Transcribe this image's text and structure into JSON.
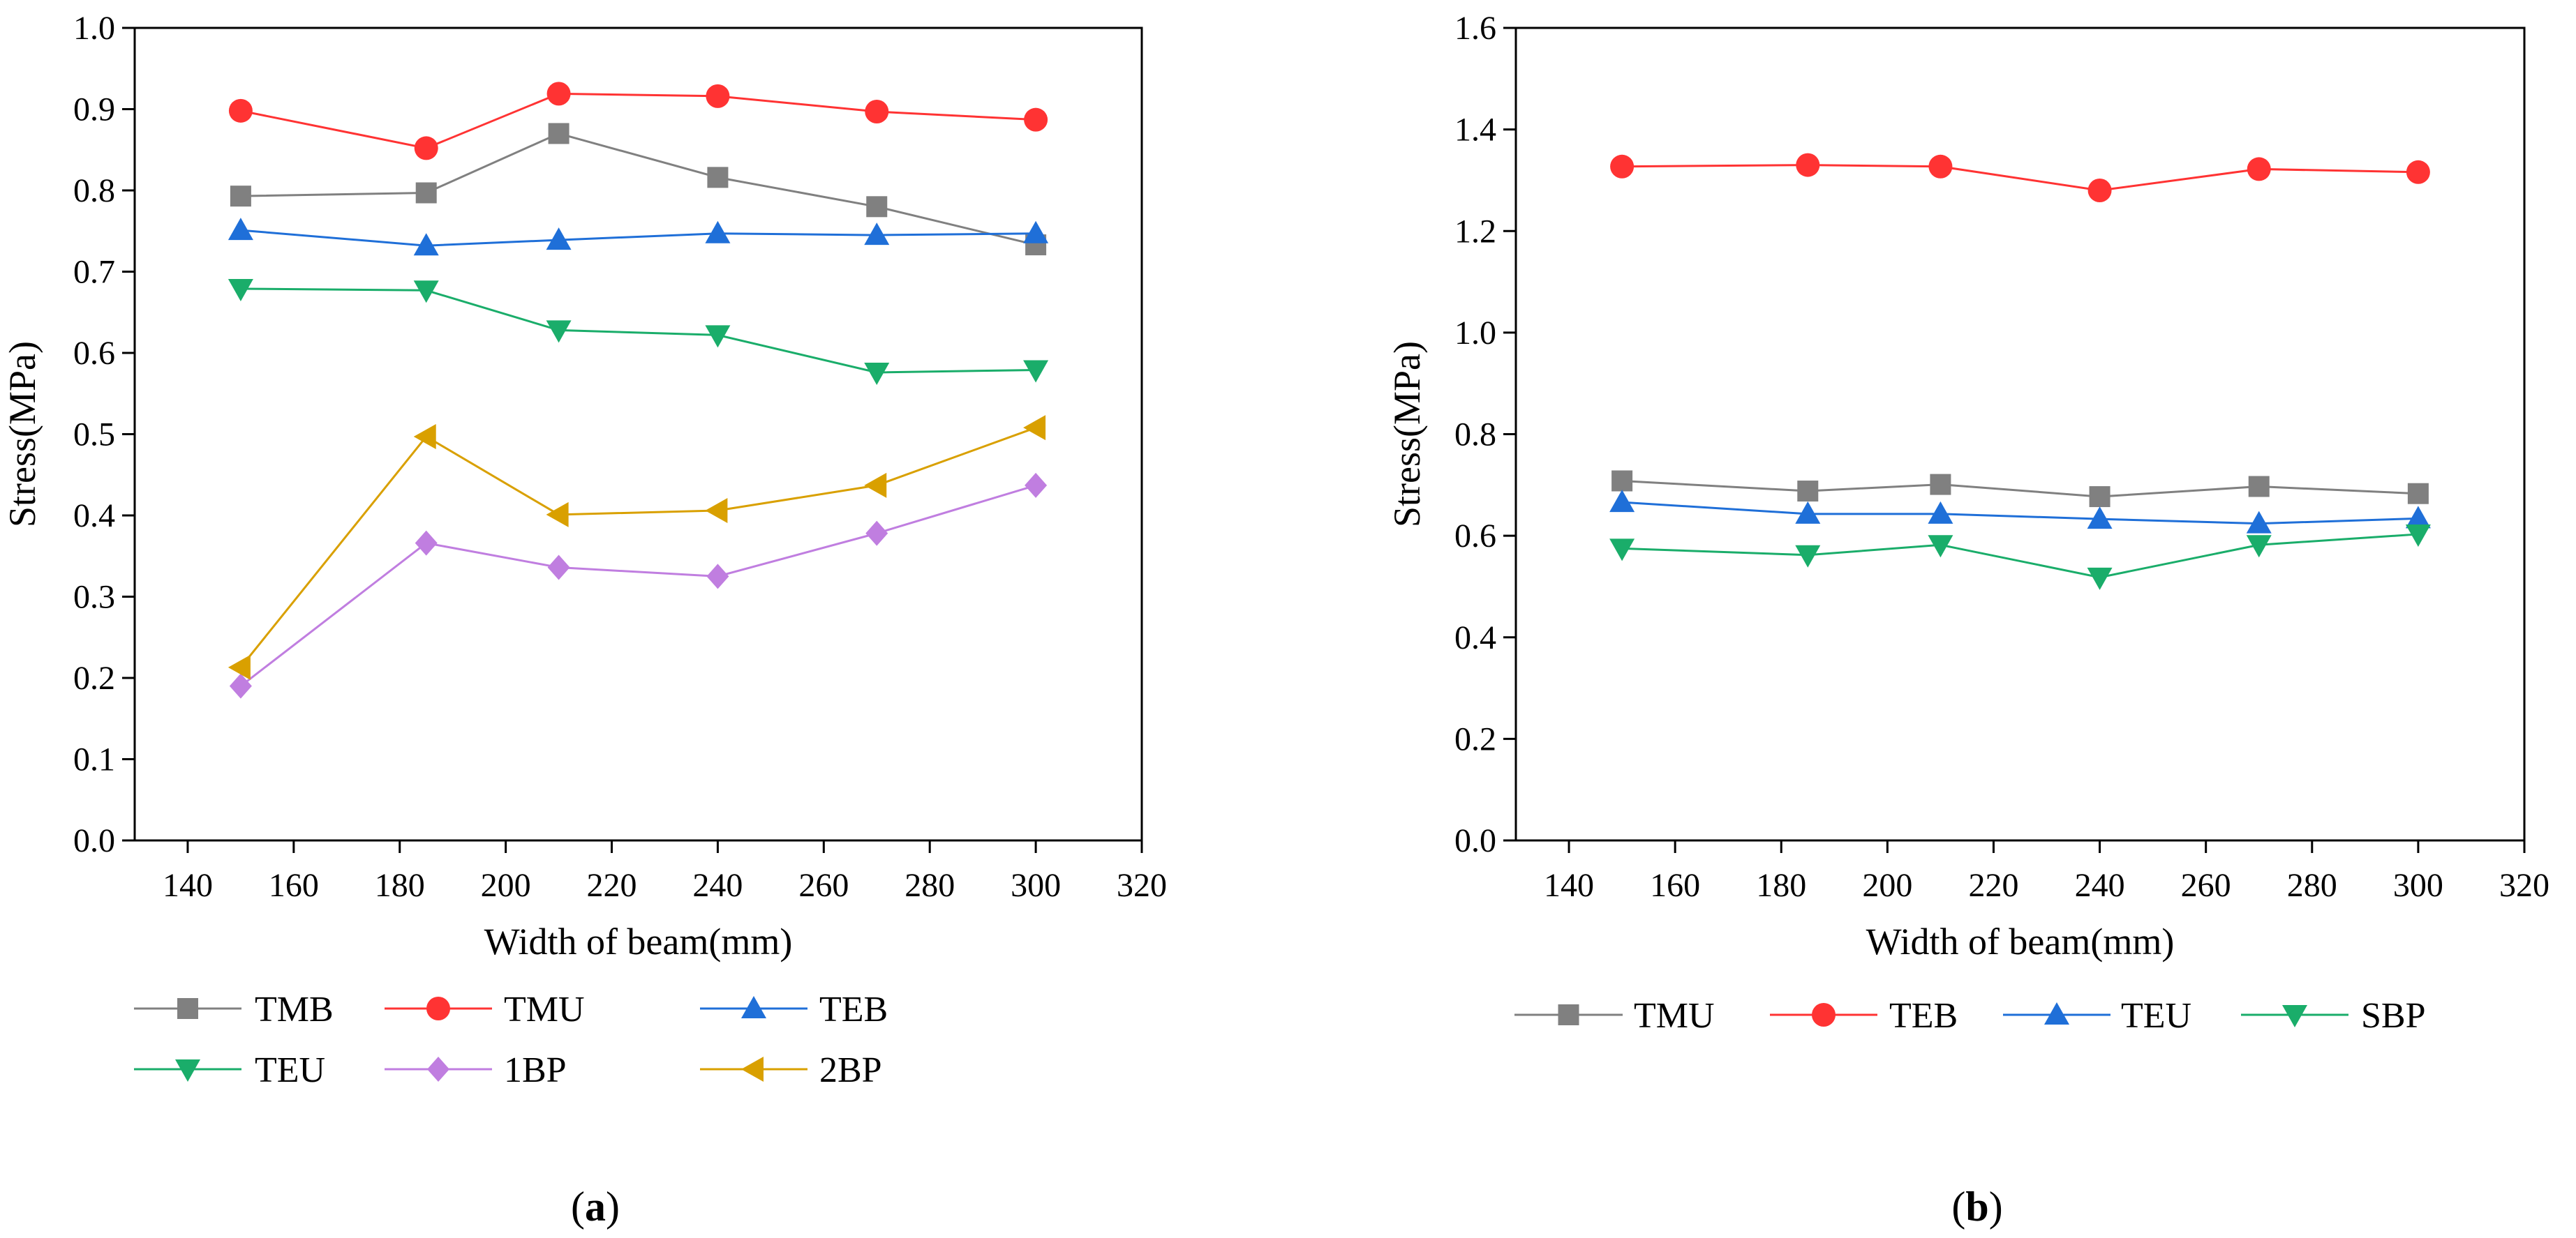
{
  "colors": {
    "TMB": "#808080",
    "TMU": "#ff3333",
    "TEB": "#1f6fd8",
    "TEU": "#1aad6a",
    "1BP": "#c07ee0",
    "2BP": "#d9a000"
  },
  "chart_data": [
    {
      "type": "line",
      "panel_label": "a",
      "xlabel": "Width of beam(mm)",
      "ylabel": "Stress(MPa)",
      "xlim": [
        130,
        320
      ],
      "ylim": [
        0.0,
        1.0
      ],
      "xticks": [
        140,
        160,
        180,
        200,
        220,
        240,
        260,
        280,
        300,
        320
      ],
      "yticks": [
        0.0,
        0.1,
        0.2,
        0.3,
        0.4,
        0.5,
        0.6,
        0.7,
        0.8,
        0.9,
        1.0
      ],
      "ytick_labels": [
        "0.0",
        "0.1",
        "0.2",
        "0.3",
        "0.4",
        "0.5",
        "0.6",
        "0.7",
        "0.8",
        "0.9",
        "1.0"
      ],
      "x": [
        150,
        185,
        210,
        240,
        270,
        300
      ],
      "series": [
        {
          "name": "TMB",
          "marker": "square",
          "values": [
            0.793,
            0.797,
            0.87,
            0.816,
            0.78,
            0.733
          ]
        },
        {
          "name": "TMU",
          "marker": "circle",
          "values": [
            0.898,
            0.852,
            0.919,
            0.916,
            0.897,
            0.887
          ]
        },
        {
          "name": "TEB",
          "marker": "triangle-up",
          "values": [
            0.751,
            0.732,
            0.739,
            0.747,
            0.745,
            0.747
          ]
        },
        {
          "name": "TEU",
          "marker": "triangle-down",
          "values": [
            0.679,
            0.677,
            0.628,
            0.622,
            0.576,
            0.579
          ]
        },
        {
          "name": "1BP",
          "marker": "diamond",
          "values": [
            0.19,
            0.366,
            0.336,
            0.325,
            0.378,
            0.437
          ]
        },
        {
          "name": "2BP",
          "marker": "triangle-left",
          "values": [
            0.213,
            0.497,
            0.401,
            0.406,
            0.437,
            0.508
          ]
        }
      ]
    },
    {
      "type": "line",
      "panel_label": "b",
      "xlabel": "Width of beam(mm)",
      "ylabel": "Stress(MPa)",
      "xlim": [
        130,
        320
      ],
      "ylim": [
        0.0,
        1.6
      ],
      "xticks": [
        140,
        160,
        180,
        200,
        220,
        240,
        260,
        280,
        300,
        320
      ],
      "yticks": [
        0.0,
        0.2,
        0.4,
        0.6,
        0.8,
        1.0,
        1.2,
        1.4,
        1.6
      ],
      "ytick_labels": [
        "0.0",
        "0.2",
        "0.4",
        "0.6",
        "0.8",
        "1.0",
        "1.2",
        "1.4",
        "1.6"
      ],
      "x": [
        150,
        185,
        210,
        240,
        270,
        300
      ],
      "series": [
        {
          "name": "TMU",
          "marker": "square",
          "color": "#808080",
          "values": [
            0.708,
            0.688,
            0.701,
            0.677,
            0.697,
            0.683
          ]
        },
        {
          "name": "TEB",
          "marker": "circle",
          "color": "#ff3333",
          "values": [
            1.327,
            1.33,
            1.327,
            1.28,
            1.322,
            1.316
          ]
        },
        {
          "name": "TEU",
          "marker": "triangle-up",
          "color": "#1f6fd8",
          "values": [
            0.666,
            0.643,
            0.643,
            0.633,
            0.624,
            0.634
          ]
        },
        {
          "name": "SBP",
          "marker": "triangle-down",
          "color": "#1aad6a",
          "values": [
            0.575,
            0.562,
            0.582,
            0.518,
            0.582,
            0.603
          ]
        }
      ]
    }
  ]
}
